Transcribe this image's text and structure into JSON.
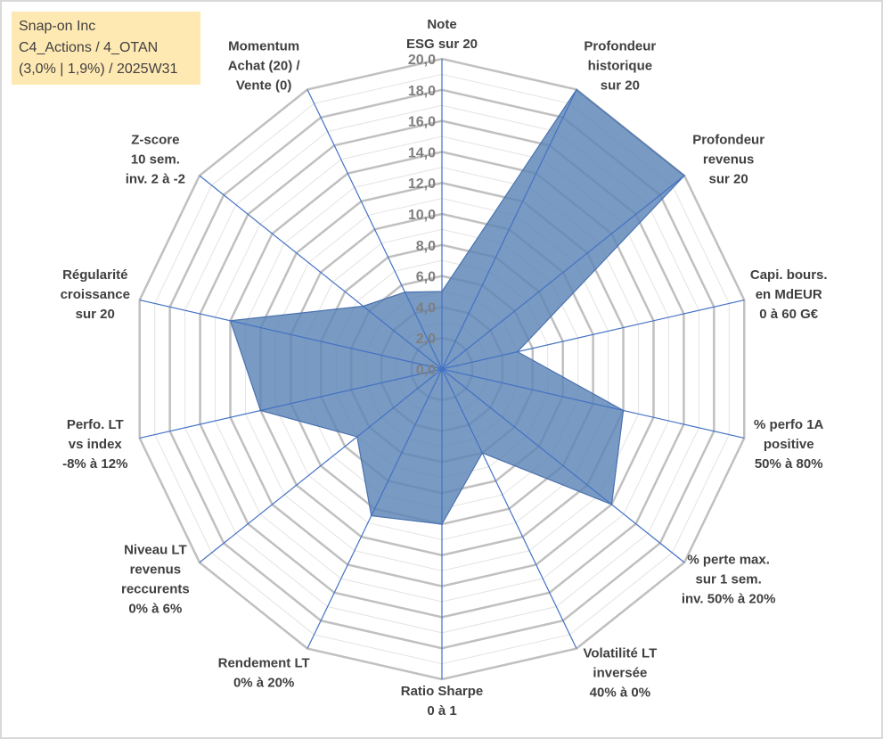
{
  "info_box": {
    "line1": "Snap-on Inc",
    "line2": "C4_Actions / 4_OTAN",
    "line3": "(3,0% | 1,9%) / 2025W31"
  },
  "colors": {
    "fill": "#5b84b5",
    "stroke": "#4a72b0",
    "grid_major": "#c0c0c0",
    "grid_minor": "#e3e3e3",
    "spoke": "#4472c4",
    "info_bg": "#ffe9b3"
  },
  "chart_data": {
    "type": "radar",
    "rmin": 0,
    "rmax": 20,
    "tick_step": 2,
    "ticks": [
      "0,0",
      "2,0",
      "4,0",
      "6,0",
      "8,0",
      "10,0",
      "12,0",
      "14,0",
      "16,0",
      "18,0",
      "20,0"
    ],
    "categories": [
      [
        "Note",
        "ESG sur 20"
      ],
      [
        "Profondeur",
        "historique",
        "sur 20"
      ],
      [
        "Profondeur",
        "revenus",
        "sur 20"
      ],
      [
        "Capi. bours.",
        "en MdEUR",
        "0 à 60 G€"
      ],
      [
        "% perfo 1A",
        "positive",
        "50% à 80%"
      ],
      [
        "% perte max.",
        "sur 1 sem.",
        "inv. 50% à 20%"
      ],
      [
        "Volatilité LT",
        "inversée",
        "40% à 0%"
      ],
      [
        "Ratio Sharpe",
        "0 à 1"
      ],
      [
        "Rendement LT",
        "0% à 20%"
      ],
      [
        "Niveau LT",
        "revenus",
        "reccurents",
        "0% à 6%"
      ],
      [
        "Perfo. LT",
        "vs index",
        "-8% à 12%"
      ],
      [
        "Régularité",
        "croissance",
        "sur 20"
      ],
      [
        "Z-score",
        "10 sem.",
        "inv. 2 à -2"
      ],
      [
        "Momentum",
        "Achat (20) /",
        "Vente (0)"
      ]
    ],
    "series": [
      {
        "values": [
          5.0,
          20.0,
          20.0,
          5.0,
          12.0,
          14.0,
          6.0,
          10.0,
          10.5,
          7.0,
          12.0,
          14.0,
          6.5,
          5.5
        ]
      }
    ],
    "grid": true,
    "legend": "none"
  }
}
